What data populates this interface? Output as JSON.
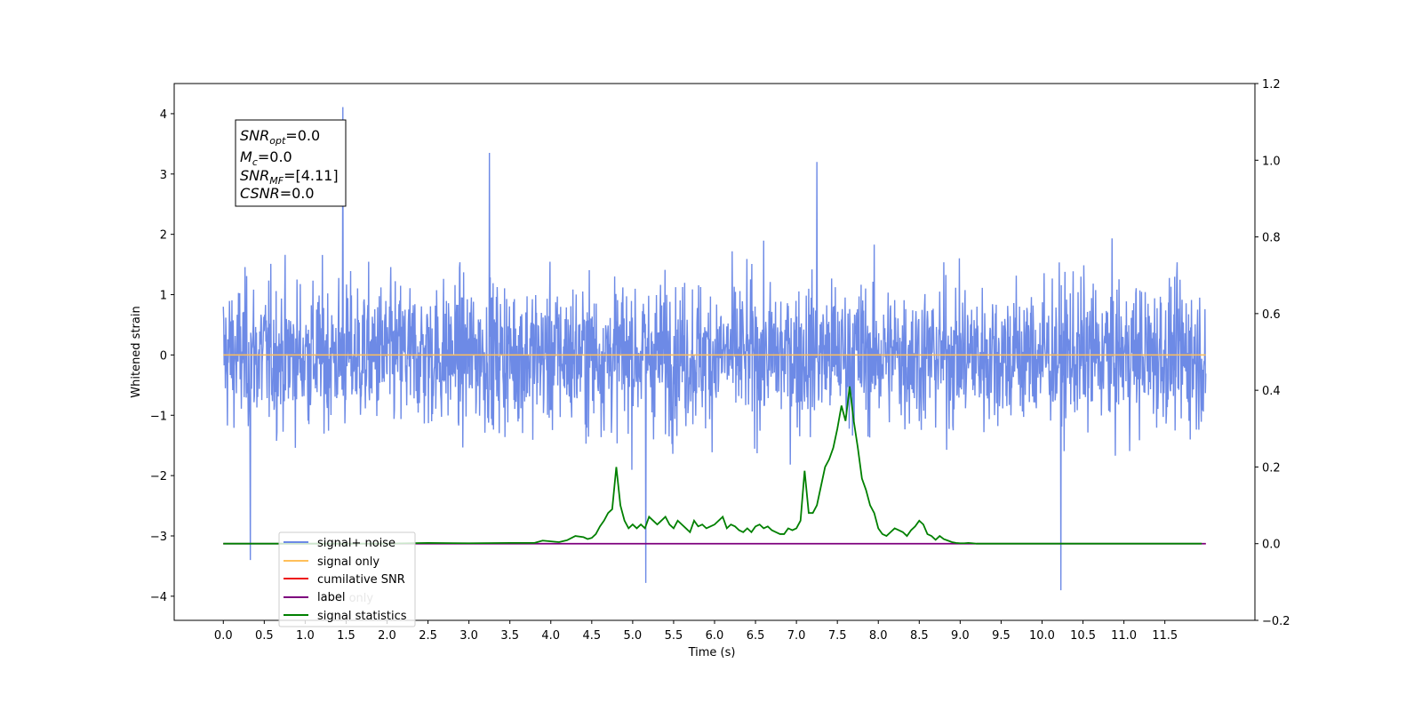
{
  "chart_data": {
    "type": "line",
    "title": "",
    "xlabel": "Time (s)",
    "ylabel": "Whitened strain",
    "xlim": [
      -0.6,
      12.6
    ],
    "ylim": [
      -4.4,
      4.5
    ],
    "y2lim": [
      -0.2,
      1.2
    ],
    "grid": false,
    "legend_position": "lower-left",
    "x_ticks": [
      "0.0",
      "0.5",
      "1.0",
      "1.5",
      "2.0",
      "2.5",
      "3.0",
      "3.5",
      "4.0",
      "4.5",
      "5.0",
      "5.5",
      "6.0",
      "6.5",
      "7.0",
      "7.5",
      "8.0",
      "8.5",
      "9.0",
      "9.5",
      "10.0",
      "10.5",
      "11.0",
      "11.5"
    ],
    "y_ticks": [
      "−4",
      "−3",
      "−2",
      "−1",
      "0",
      "1",
      "2",
      "3",
      "4"
    ],
    "y2_ticks": [
      "−0.2",
      "0.0",
      "0.2",
      "0.4",
      "0.6",
      "0.8",
      "1.0",
      "1.2"
    ],
    "annotation": [
      {
        "name": "SNR",
        "sub": "opt",
        "value": "=0.0"
      },
      {
        "name": "M",
        "sub": "c",
        "value": "=0.0"
      },
      {
        "name": "SNR",
        "sub": "MF",
        "value": "=[4.11]"
      },
      {
        "name": "CSNR",
        "sub": "",
        "value": "=0.0"
      }
    ],
    "series": [
      {
        "name": "signal+ noise",
        "color": "#6d8ae6",
        "axis": "left",
        "x_range": [
          0,
          12
        ],
        "mean": 0.0,
        "envelope": [
          -2.3,
          2.3
        ],
        "max": 4.11,
        "min": -3.9
      },
      {
        "name": "signal only",
        "color": "#ffbf5a",
        "axis": "left",
        "x": [
          0,
          12
        ],
        "y": [
          0,
          0
        ]
      },
      {
        "name": "cumilative SNR",
        "color": "#ee1111",
        "axis": "right",
        "x": [
          0,
          12
        ],
        "y": [
          0,
          0
        ]
      },
      {
        "name": "label",
        "color": "#7d007d",
        "axis": "right",
        "x": [
          0,
          12
        ],
        "y": [
          0,
          0
        ]
      },
      {
        "name": "label only",
        "color": "#7d007d",
        "axis": "right",
        "x": [
          0,
          12
        ],
        "y": [
          0,
          0
        ]
      },
      {
        "name": "signal statistics",
        "color": "#008000",
        "axis": "right",
        "x": [
          0,
          1,
          2,
          2.5,
          3,
          3.5,
          3.8,
          3.9,
          4.0,
          4.1,
          4.2,
          4.3,
          4.4,
          4.45,
          4.5,
          4.55,
          4.6,
          4.65,
          4.7,
          4.75,
          4.8,
          4.85,
          4.9,
          4.95,
          5.0,
          5.05,
          5.1,
          5.15,
          5.2,
          5.25,
          5.3,
          5.35,
          5.4,
          5.45,
          5.5,
          5.55,
          5.6,
          5.65,
          5.7,
          5.75,
          5.8,
          5.85,
          5.9,
          5.95,
          6.0,
          6.05,
          6.1,
          6.15,
          6.2,
          6.25,
          6.3,
          6.35,
          6.4,
          6.45,
          6.5,
          6.55,
          6.6,
          6.65,
          6.7,
          6.75,
          6.8,
          6.85,
          6.9,
          6.95,
          7.0,
          7.05,
          7.1,
          7.15,
          7.2,
          7.25,
          7.3,
          7.35,
          7.4,
          7.45,
          7.5,
          7.55,
          7.6,
          7.65,
          7.7,
          7.75,
          7.8,
          7.85,
          7.9,
          7.95,
          8.0,
          8.05,
          8.1,
          8.15,
          8.2,
          8.25,
          8.3,
          8.35,
          8.4,
          8.45,
          8.5,
          8.55,
          8.6,
          8.65,
          8.7,
          8.75,
          8.8,
          8.85,
          8.9,
          8.95,
          9.0,
          9.05,
          9.1,
          9.15,
          9.2,
          9.25,
          9.3,
          9.35,
          9.4,
          9.5,
          9.6,
          9.7,
          9.8,
          10,
          11,
          11.95
        ],
        "y": [
          0,
          0,
          0,
          0.002,
          0.001,
          0.002,
          0.002,
          0.008,
          0.006,
          0.004,
          0.009,
          0.02,
          0.017,
          0.012,
          0.015,
          0.025,
          0.045,
          0.06,
          0.08,
          0.09,
          0.2,
          0.1,
          0.06,
          0.04,
          0.05,
          0.04,
          0.05,
          0.04,
          0.07,
          0.06,
          0.05,
          0.06,
          0.07,
          0.05,
          0.04,
          0.06,
          0.05,
          0.04,
          0.03,
          0.06,
          0.045,
          0.05,
          0.04,
          0.045,
          0.05,
          0.06,
          0.07,
          0.04,
          0.05,
          0.045,
          0.035,
          0.03,
          0.04,
          0.03,
          0.045,
          0.05,
          0.04,
          0.045,
          0.035,
          0.03,
          0.025,
          0.025,
          0.04,
          0.035,
          0.04,
          0.06,
          0.19,
          0.08,
          0.08,
          0.1,
          0.15,
          0.2,
          0.22,
          0.25,
          0.3,
          0.36,
          0.32,
          0.41,
          0.32,
          0.25,
          0.17,
          0.14,
          0.1,
          0.08,
          0.04,
          0.025,
          0.02,
          0.03,
          0.04,
          0.035,
          0.03,
          0.02,
          0.035,
          0.045,
          0.06,
          0.05,
          0.025,
          0.02,
          0.01,
          0.02,
          0.012,
          0.008,
          0.004,
          0.002,
          0.001,
          0.001,
          0.002,
          0.001,
          0,
          0,
          0,
          0,
          0,
          0,
          0,
          0,
          0,
          0,
          0,
          0
        ]
      }
    ]
  }
}
